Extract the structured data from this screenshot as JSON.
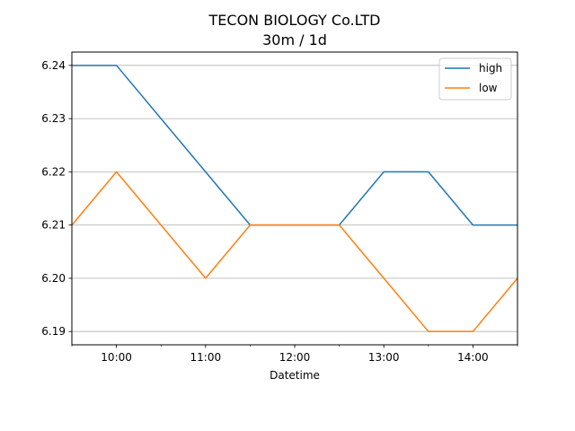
{
  "chart_data": {
    "type": "line",
    "title": "TECON BIOLOGY Co.LTD",
    "subtitle": "30m / 1d",
    "xlabel": "Datetime",
    "ylabel": "",
    "x": [
      "09:30",
      "10:00",
      "10:30",
      "11:00",
      "11:30",
      "12:00",
      "12:30",
      "13:00",
      "13:30",
      "14:00",
      "14:30"
    ],
    "x_ticks": [
      "10:00",
      "11:00",
      "12:00",
      "13:00",
      "14:00"
    ],
    "y_ticks": [
      "6.19",
      "6.20",
      "6.21",
      "6.22",
      "6.23",
      "6.24"
    ],
    "ylim": [
      6.1875,
      6.2425
    ],
    "grid": "y",
    "legend": "top-right",
    "series": [
      {
        "name": "high",
        "color": "#1f77b4",
        "values": [
          6.24,
          6.24,
          6.23,
          6.22,
          6.21,
          6.21,
          6.21,
          6.22,
          6.22,
          6.21,
          6.21
        ]
      },
      {
        "name": "low",
        "color": "#ff7f0e",
        "values": [
          6.21,
          6.22,
          6.21,
          6.2,
          6.21,
          6.21,
          6.21,
          6.2,
          6.19,
          6.19,
          6.2
        ]
      }
    ]
  }
}
